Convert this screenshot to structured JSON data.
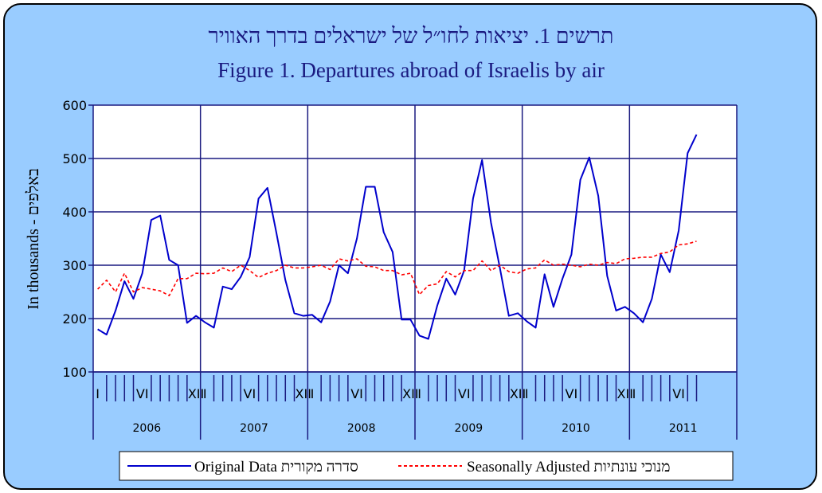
{
  "chart_data": {
    "type": "line",
    "title_hebrew": "תרשים 1. יציאות לחו״ל של ישראלים בדרך האוויר",
    "title": "Figure 1. Departures abroad of Israelis by air",
    "ylabel": "In thousands - באלפים",
    "ylim": [
      100,
      600
    ],
    "yticks": [
      100,
      200,
      300,
      400,
      500,
      600
    ],
    "grid": true,
    "legend_position": "bottom",
    "start": "2006-01",
    "years": [
      "2006",
      "2007",
      "2008",
      "2009",
      "2010",
      "2011"
    ],
    "month_markers": [
      "I",
      "VI",
      "XII"
    ],
    "series": [
      {
        "name": "Original Data סדרה מקורית",
        "color": "#0000cc",
        "style": "solid",
        "values": [
          180,
          170,
          215,
          270,
          237,
          285,
          385,
          393,
          310,
          300,
          192,
          205,
          193,
          183,
          260,
          255,
          278,
          315,
          425,
          445,
          360,
          272,
          210,
          205,
          207,
          193,
          232,
          300,
          285,
          350,
          447,
          447,
          362,
          325,
          198,
          198,
          168,
          162,
          225,
          275,
          245,
          290,
          425,
          497,
          380,
          295,
          205,
          210,
          195,
          183,
          283,
          222,
          275,
          320,
          460,
          502,
          430,
          280,
          215,
          222,
          210,
          193,
          237,
          320,
          287,
          365,
          510,
          545
        ]
      },
      {
        "name": "Seasonally Adjusted מנוכי עונתיות",
        "color": "#ff0000",
        "style": "dashed",
        "values": [
          255,
          272,
          250,
          285,
          250,
          258,
          255,
          252,
          243,
          275,
          275,
          285,
          284,
          285,
          295,
          288,
          300,
          290,
          277,
          285,
          290,
          300,
          295,
          295,
          297,
          300,
          292,
          312,
          308,
          312,
          298,
          297,
          290,
          290,
          282,
          285,
          245,
          262,
          265,
          288,
          278,
          290,
          290,
          308,
          290,
          300,
          288,
          285,
          293,
          295,
          310,
          300,
          302,
          300,
          297,
          302,
          300,
          305,
          303,
          312,
          313,
          315,
          315,
          322,
          325,
          338,
          340,
          345
        ]
      }
    ]
  },
  "colors": {
    "background": "#99ccff",
    "plot_area": "#ffffff",
    "grid": "#1a1a80",
    "title": "#1a1a80"
  }
}
